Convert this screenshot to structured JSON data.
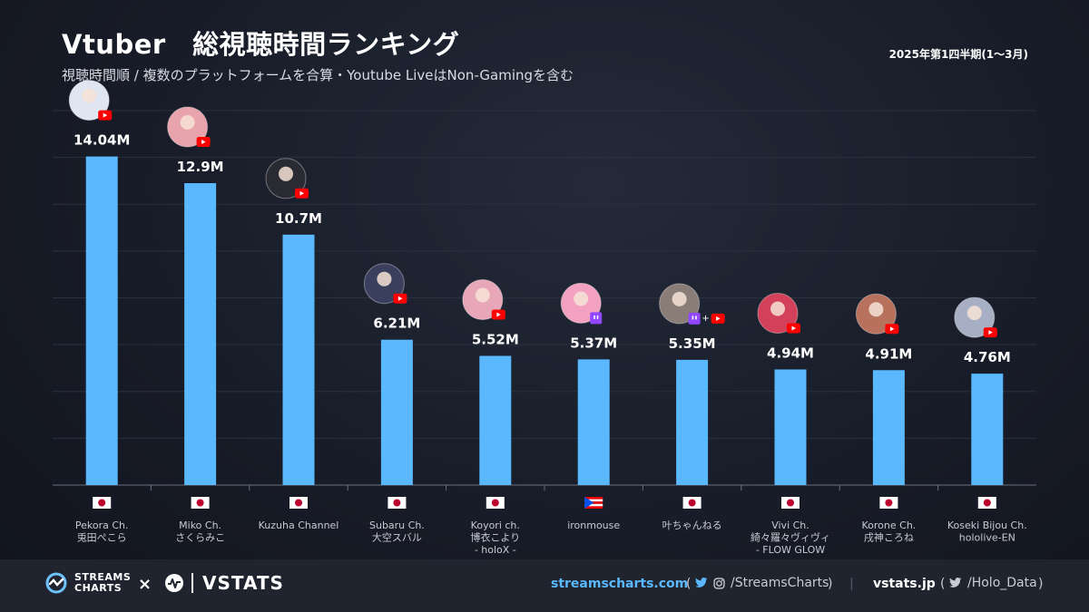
{
  "header": {
    "title": "Vtuber　総視聴時間ランキング",
    "subtitle": "視聴時間順 / 複数のプラットフォームを合算・Youtube LiveはNon-Gamingを含む",
    "period": "2025年第1四半期(1～3月)"
  },
  "chart_data": {
    "type": "bar",
    "title": "Vtuber　総視聴時間ランキング",
    "ylim": [
      0,
      16
    ],
    "categories": [
      [
        "Pekora Ch.",
        "兎田ぺこら"
      ],
      [
        "Miko Ch.",
        "さくらみこ"
      ],
      [
        "Kuzuha Channel"
      ],
      [
        "Subaru Ch.",
        "大空スバル"
      ],
      [
        "Koyori ch.",
        "博衣こより",
        "- holoX -"
      ],
      [
        "ironmouse"
      ],
      [
        "叶ちゃんねる"
      ],
      [
        "Vivi Ch.",
        "綺々羅々ヴィヴィ",
        "- FLOW GLOW"
      ],
      [
        "Korone Ch.",
        "戌神ころね"
      ],
      [
        "Koseki Bijou Ch.",
        "hololive-EN"
      ]
    ],
    "values": [
      14.04,
      12.9,
      10.7,
      6.21,
      5.52,
      5.37,
      5.35,
      4.94,
      4.91,
      4.76
    ],
    "value_labels": [
      "14.04M",
      "12.9M",
      "10.7M",
      "6.21M",
      "5.52M",
      "5.37M",
      "5.35M",
      "4.94M",
      "4.91M",
      "4.76M"
    ],
    "flags": [
      "japan",
      "japan",
      "japan",
      "japan",
      "japan",
      "puerto-rico",
      "japan",
      "japan",
      "japan",
      "japan"
    ],
    "platforms": [
      [
        "youtube"
      ],
      [
        "youtube"
      ],
      [
        "youtube"
      ],
      [
        "youtube"
      ],
      [
        "youtube"
      ],
      [
        "twitch"
      ],
      [
        "twitch",
        "youtube"
      ],
      [
        "youtube"
      ],
      [
        "youtube"
      ],
      [
        "youtube"
      ]
    ],
    "avatar_colors": [
      "#dfe6f2",
      "#e9a3ad",
      "#2a2a33",
      "#3a3f5e",
      "#e8a7b9",
      "#f2a1c0",
      "#8a7d78",
      "#d3405a",
      "#b7715c",
      "#a7afc4"
    ],
    "bar_color": "#5ab8ff",
    "grid": true
  },
  "footer": {
    "streamscharts_logo": "STREAMS CHARTS",
    "times": "×",
    "vstats_logo": "VSTATS",
    "site1": "streamscharts.com",
    "social1": "/StreamsCharts",
    "site2": "vstats.jp",
    "social2": "/Holo_Data",
    "paren_open": "(",
    "paren_close": ")",
    "divider": "|"
  },
  "colors": {
    "background": "#141824",
    "bar": "#5ab8ff",
    "youtube": "#ff0000",
    "twitch": "#9146ff",
    "link": "#5ab8ff"
  }
}
